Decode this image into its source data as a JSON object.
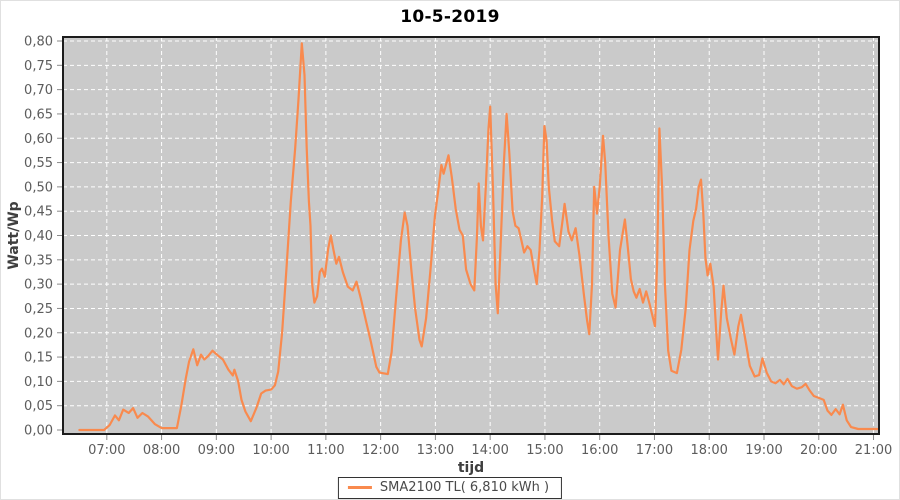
{
  "title": "10-5-2019",
  "colors": {
    "series": "#f98a4e",
    "plot_bg": "#cacaca",
    "grid": "#ffffff",
    "plot_border": "#1c1c1c",
    "tick": "#8a8a8a",
    "tick_text": "#5c5c5c",
    "axis_title_text": "#3f3f3f",
    "title_text": "#000000"
  },
  "legend": {
    "label": "SMA2100 TL( 6,810 kWh )"
  },
  "chart_data": {
    "type": "line",
    "title": "10-5-2019",
    "xlabel": "tijd",
    "ylabel": "Watt/Wp",
    "grid": true,
    "grid_style": "white dashed on gray plot",
    "legend_position": "bottom-center",
    "x_domain": [
      6.2,
      21.1
    ],
    "ylim": [
      0,
      0.8
    ],
    "y_tick_step": 0.05,
    "y_tick_labels": [
      "0,00",
      "0,05",
      "0,10",
      "0,15",
      "0,20",
      "0,25",
      "0,30",
      "0,35",
      "0,40",
      "0,45",
      "0,50",
      "0,55",
      "0,60",
      "0,65",
      "0,70",
      "0,75",
      "0,80"
    ],
    "x_ticks": [
      {
        "value": 7,
        "label": "07:00"
      },
      {
        "value": 8,
        "label": "08:00"
      },
      {
        "value": 9,
        "label": "09:00"
      },
      {
        "value": 10,
        "label": "10:00"
      },
      {
        "value": 11,
        "label": "11:00"
      },
      {
        "value": 12,
        "label": "12:00"
      },
      {
        "value": 13,
        "label": "13:00"
      },
      {
        "value": 14,
        "label": "14:00"
      },
      {
        "value": 15,
        "label": "15:00"
      },
      {
        "value": 16,
        "label": "16:00"
      },
      {
        "value": 17,
        "label": "17:00"
      },
      {
        "value": 18,
        "label": "18:00"
      },
      {
        "value": 19,
        "label": "19:00"
      },
      {
        "value": 20,
        "label": "20:00"
      },
      {
        "value": 21,
        "label": "21:00"
      }
    ],
    "series": [
      {
        "name": "SMA2100 TL( 6,810 kWh )",
        "color": "#f98a4e",
        "points": [
          [
            6.5,
            0.0
          ],
          [
            6.95,
            0.0
          ],
          [
            7.05,
            0.01
          ],
          [
            7.15,
            0.03
          ],
          [
            7.22,
            0.02
          ],
          [
            7.3,
            0.042
          ],
          [
            7.4,
            0.035
          ],
          [
            7.48,
            0.045
          ],
          [
            7.56,
            0.025
          ],
          [
            7.65,
            0.035
          ],
          [
            7.75,
            0.028
          ],
          [
            7.88,
            0.012
          ],
          [
            8.0,
            0.004
          ],
          [
            8.28,
            0.004
          ],
          [
            8.36,
            0.05
          ],
          [
            8.44,
            0.105
          ],
          [
            8.5,
            0.14
          ],
          [
            8.58,
            0.166
          ],
          [
            8.65,
            0.133
          ],
          [
            8.72,
            0.155
          ],
          [
            8.78,
            0.145
          ],
          [
            8.85,
            0.152
          ],
          [
            8.93,
            0.163
          ],
          [
            9.02,
            0.154
          ],
          [
            9.12,
            0.145
          ],
          [
            9.22,
            0.124
          ],
          [
            9.3,
            0.112
          ],
          [
            9.33,
            0.124
          ],
          [
            9.4,
            0.1
          ],
          [
            9.46,
            0.062
          ],
          [
            9.53,
            0.038
          ],
          [
            9.63,
            0.018
          ],
          [
            9.73,
            0.045
          ],
          [
            9.82,
            0.075
          ],
          [
            9.9,
            0.081
          ],
          [
            10.0,
            0.083
          ],
          [
            10.07,
            0.092
          ],
          [
            10.13,
            0.12
          ],
          [
            10.2,
            0.2
          ],
          [
            10.28,
            0.33
          ],
          [
            10.36,
            0.47
          ],
          [
            10.44,
            0.58
          ],
          [
            10.5,
            0.68
          ],
          [
            10.56,
            0.795
          ],
          [
            10.61,
            0.73
          ],
          [
            10.65,
            0.58
          ],
          [
            10.69,
            0.47
          ],
          [
            10.72,
            0.42
          ],
          [
            10.75,
            0.3
          ],
          [
            10.79,
            0.262
          ],
          [
            10.84,
            0.275
          ],
          [
            10.89,
            0.325
          ],
          [
            10.93,
            0.332
          ],
          [
            10.98,
            0.315
          ],
          [
            11.04,
            0.372
          ],
          [
            11.09,
            0.4
          ],
          [
            11.14,
            0.37
          ],
          [
            11.19,
            0.342
          ],
          [
            11.24,
            0.356
          ],
          [
            11.31,
            0.325
          ],
          [
            11.4,
            0.295
          ],
          [
            11.49,
            0.287
          ],
          [
            11.56,
            0.305
          ],
          [
            11.64,
            0.27
          ],
          [
            11.73,
            0.225
          ],
          [
            11.82,
            0.182
          ],
          [
            11.92,
            0.13
          ],
          [
            11.98,
            0.118
          ],
          [
            12.13,
            0.115
          ],
          [
            12.2,
            0.16
          ],
          [
            12.28,
            0.27
          ],
          [
            12.37,
            0.39
          ],
          [
            12.44,
            0.447
          ],
          [
            12.49,
            0.42
          ],
          [
            12.56,
            0.33
          ],
          [
            12.63,
            0.25
          ],
          [
            12.71,
            0.185
          ],
          [
            12.75,
            0.172
          ],
          [
            12.83,
            0.23
          ],
          [
            12.91,
            0.33
          ],
          [
            12.99,
            0.44
          ],
          [
            13.06,
            0.5
          ],
          [
            13.11,
            0.545
          ],
          [
            13.15,
            0.527
          ],
          [
            13.18,
            0.54
          ],
          [
            13.24,
            0.565
          ],
          [
            13.3,
            0.52
          ],
          [
            13.37,
            0.455
          ],
          [
            13.44,
            0.412
          ],
          [
            13.5,
            0.4
          ],
          [
            13.56,
            0.33
          ],
          [
            13.64,
            0.3
          ],
          [
            13.71,
            0.287
          ],
          [
            13.76,
            0.4
          ],
          [
            13.79,
            0.507
          ],
          [
            13.83,
            0.42
          ],
          [
            13.87,
            0.39
          ],
          [
            13.92,
            0.5
          ],
          [
            13.97,
            0.62
          ],
          [
            14.0,
            0.665
          ],
          [
            14.05,
            0.5
          ],
          [
            14.1,
            0.3
          ],
          [
            14.14,
            0.24
          ],
          [
            14.19,
            0.38
          ],
          [
            14.25,
            0.55
          ],
          [
            14.3,
            0.65
          ],
          [
            14.35,
            0.57
          ],
          [
            14.41,
            0.45
          ],
          [
            14.46,
            0.42
          ],
          [
            14.52,
            0.415
          ],
          [
            14.57,
            0.39
          ],
          [
            14.62,
            0.365
          ],
          [
            14.68,
            0.378
          ],
          [
            14.74,
            0.37
          ],
          [
            14.8,
            0.33
          ],
          [
            14.85,
            0.3
          ],
          [
            14.9,
            0.37
          ],
          [
            14.95,
            0.48
          ],
          [
            14.99,
            0.625
          ],
          [
            15.03,
            0.595
          ],
          [
            15.07,
            0.5
          ],
          [
            15.13,
            0.43
          ],
          [
            15.18,
            0.388
          ],
          [
            15.26,
            0.378
          ],
          [
            15.32,
            0.43
          ],
          [
            15.36,
            0.465
          ],
          [
            15.43,
            0.408
          ],
          [
            15.49,
            0.39
          ],
          [
            15.56,
            0.415
          ],
          [
            15.63,
            0.36
          ],
          [
            15.71,
            0.28
          ],
          [
            15.77,
            0.225
          ],
          [
            15.81,
            0.197
          ],
          [
            15.86,
            0.3
          ],
          [
            15.9,
            0.5
          ],
          [
            15.95,
            0.445
          ],
          [
            16.0,
            0.5
          ],
          [
            16.06,
            0.605
          ],
          [
            16.1,
            0.55
          ],
          [
            16.16,
            0.4
          ],
          [
            16.23,
            0.28
          ],
          [
            16.29,
            0.252
          ],
          [
            16.37,
            0.37
          ],
          [
            16.46,
            0.433
          ],
          [
            16.51,
            0.38
          ],
          [
            16.57,
            0.31
          ],
          [
            16.62,
            0.285
          ],
          [
            16.67,
            0.272
          ],
          [
            16.73,
            0.29
          ],
          [
            16.79,
            0.262
          ],
          [
            16.85,
            0.285
          ],
          [
            16.91,
            0.26
          ],
          [
            16.97,
            0.232
          ],
          [
            17.01,
            0.213
          ],
          [
            17.05,
            0.35
          ],
          [
            17.09,
            0.62
          ],
          [
            17.14,
            0.5
          ],
          [
            17.19,
            0.3
          ],
          [
            17.25,
            0.163
          ],
          [
            17.31,
            0.122
          ],
          [
            17.41,
            0.117
          ],
          [
            17.49,
            0.165
          ],
          [
            17.57,
            0.25
          ],
          [
            17.64,
            0.37
          ],
          [
            17.71,
            0.43
          ],
          [
            17.76,
            0.455
          ],
          [
            17.81,
            0.5
          ],
          [
            17.85,
            0.515
          ],
          [
            17.89,
            0.45
          ],
          [
            17.93,
            0.355
          ],
          [
            17.97,
            0.318
          ],
          [
            18.02,
            0.342
          ],
          [
            18.08,
            0.295
          ],
          [
            18.13,
            0.2
          ],
          [
            18.16,
            0.145
          ],
          [
            18.22,
            0.245
          ],
          [
            18.26,
            0.297
          ],
          [
            18.32,
            0.23
          ],
          [
            18.39,
            0.19
          ],
          [
            18.46,
            0.155
          ],
          [
            18.53,
            0.213
          ],
          [
            18.58,
            0.237
          ],
          [
            18.66,
            0.185
          ],
          [
            18.74,
            0.132
          ],
          [
            18.83,
            0.11
          ],
          [
            18.91,
            0.113
          ],
          [
            18.97,
            0.147
          ],
          [
            19.05,
            0.118
          ],
          [
            19.13,
            0.1
          ],
          [
            19.21,
            0.096
          ],
          [
            19.29,
            0.103
          ],
          [
            19.36,
            0.094
          ],
          [
            19.43,
            0.105
          ],
          [
            19.51,
            0.09
          ],
          [
            19.6,
            0.085
          ],
          [
            19.69,
            0.088
          ],
          [
            19.76,
            0.095
          ],
          [
            19.83,
            0.082
          ],
          [
            19.91,
            0.07
          ],
          [
            20.0,
            0.066
          ],
          [
            20.09,
            0.062
          ],
          [
            20.16,
            0.04
          ],
          [
            20.23,
            0.031
          ],
          [
            20.31,
            0.043
          ],
          [
            20.38,
            0.032
          ],
          [
            20.44,
            0.052
          ],
          [
            20.51,
            0.02
          ],
          [
            20.59,
            0.006
          ],
          [
            20.72,
            0.002
          ],
          [
            21.07,
            0.002
          ]
        ]
      }
    ]
  }
}
